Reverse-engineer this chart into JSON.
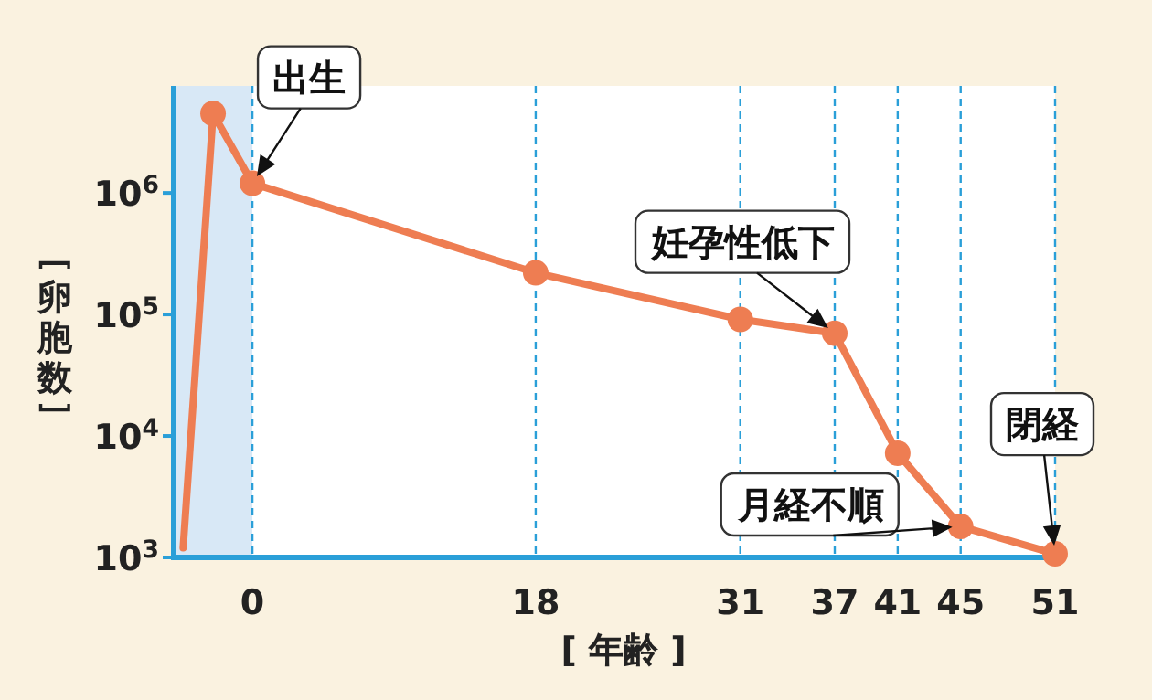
{
  "chart_data": {
    "type": "line",
    "xlabel": "[ 年齢 ]",
    "ylabel": "［卵胞数］",
    "log": true,
    "grid": "x",
    "marker": "circle",
    "line_style": "solid",
    "x": [
      -4.4,
      -2.5,
      0,
      18,
      31,
      37,
      41,
      45,
      51
    ],
    "xlim": [
      -5,
      51
    ],
    "xticks": [
      0,
      18,
      31,
      37,
      41,
      45,
      51
    ],
    "ylim": [
      1000,
      7600000
    ],
    "yticks": [
      {
        "value": 1000,
        "label": "10$^{3}$"
      },
      {
        "value": 10000,
        "label": "10$^{4}$"
      },
      {
        "value": 100000,
        "label": "10$^{5}$"
      },
      {
        "value": 1000000,
        "label": "10$^{6}$"
      }
    ],
    "series": [
      {
        "color": "#ee7d52",
        "values": [
          1200,
          4500000,
          1200000,
          220000,
          91000,
          70000,
          7200,
          1800,
          1070
        ]
      }
    ],
    "bands": [
      {
        "axis": "x",
        "from": -5,
        "to": 0,
        "color": "#d8e8f6"
      }
    ],
    "annotations": [
      {
        "text": "出生",
        "x": 0,
        "y": 1200000
      },
      {
        "text": "妊孕性低下",
        "x": 37,
        "y": 70000
      },
      {
        "text": "月経不順",
        "x": 45,
        "y": 1800
      },
      {
        "text": "閉経",
        "x": 51,
        "y": 1070
      }
    ]
  }
}
